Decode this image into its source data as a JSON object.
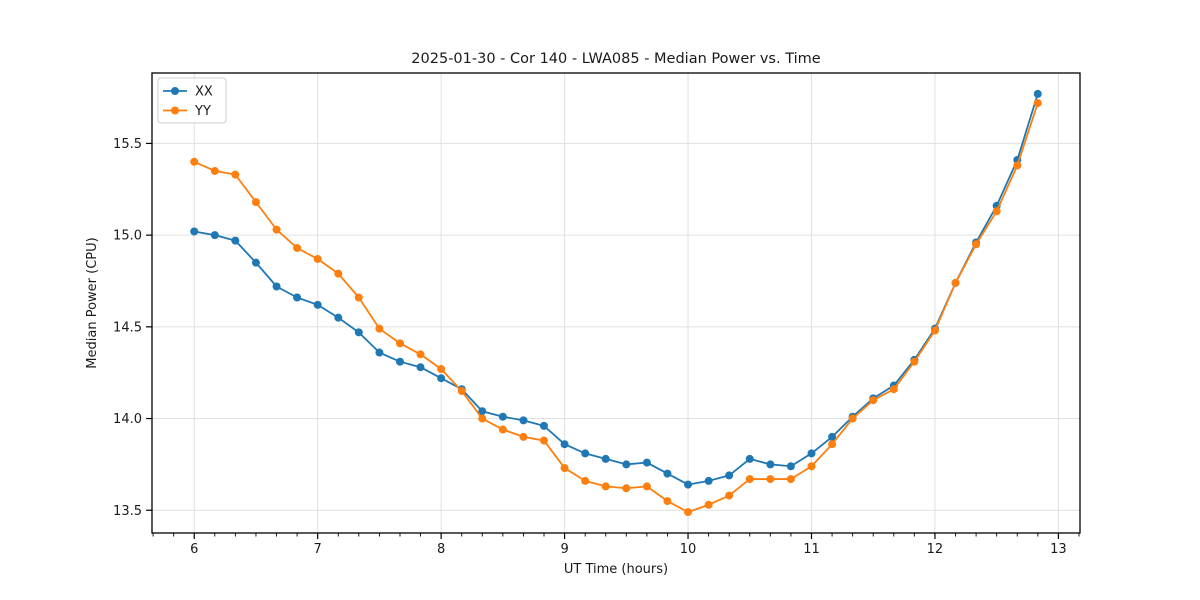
{
  "chart_data": {
    "type": "line",
    "title": "2025-01-30 - Cor 140 - LWA085 - Median Power vs. Time",
    "xlabel": "UT Time (hours)",
    "ylabel": "Median Power (CPU)",
    "x": [
      6.0,
      6.167,
      6.333,
      6.5,
      6.667,
      6.833,
      7.0,
      7.167,
      7.333,
      7.5,
      7.667,
      7.833,
      8.0,
      8.167,
      8.333,
      8.5,
      8.667,
      8.833,
      9.0,
      9.167,
      9.333,
      9.5,
      9.667,
      9.833,
      10.0,
      10.167,
      10.333,
      10.5,
      10.667,
      10.833,
      11.0,
      11.167,
      11.333,
      11.5,
      11.667,
      11.833,
      12.0,
      12.167,
      12.333,
      12.5,
      12.667,
      12.833
    ],
    "series": [
      {
        "name": "XX",
        "color": "#1f77b4",
        "values": [
          15.02,
          15.0,
          14.97,
          14.85,
          14.72,
          14.66,
          14.62,
          14.55,
          14.47,
          14.36,
          14.31,
          14.28,
          14.22,
          14.16,
          14.04,
          14.01,
          13.99,
          13.96,
          13.86,
          13.81,
          13.78,
          13.75,
          13.76,
          13.7,
          13.64,
          13.66,
          13.69,
          13.78,
          13.75,
          13.74,
          13.81,
          13.9,
          14.01,
          14.11,
          14.18,
          14.32,
          14.49,
          14.74,
          14.96,
          15.16,
          15.41,
          15.77
        ]
      },
      {
        "name": "YY",
        "color": "#ff7f0e",
        "values": [
          15.4,
          15.35,
          15.33,
          15.18,
          15.03,
          14.93,
          14.87,
          14.79,
          14.66,
          14.49,
          14.41,
          14.35,
          14.27,
          14.15,
          14.0,
          13.94,
          13.9,
          13.88,
          13.73,
          13.66,
          13.63,
          13.62,
          13.63,
          13.55,
          13.49,
          13.53,
          13.58,
          13.67,
          13.67,
          13.67,
          13.74,
          13.86,
          14.0,
          14.1,
          14.16,
          14.31,
          14.48,
          14.74,
          14.95,
          15.13,
          15.38,
          15.72
        ]
      }
    ],
    "xticks": {
      "values": [
        6,
        7,
        8,
        9,
        10,
        11,
        12,
        13
      ],
      "labels": [
        "6",
        "7",
        "8",
        "9",
        "10",
        "11",
        "12",
        "13"
      ]
    },
    "yticks": {
      "values": [
        13.5,
        14.0,
        14.5,
        15.0,
        15.5
      ],
      "labels": [
        "13.5",
        "14.0",
        "14.5",
        "15.0",
        "15.5"
      ]
    },
    "xlim": [
      5.658,
      13.175
    ],
    "ylim": [
      13.376,
      15.884
    ],
    "minor_x_step": 0.166667,
    "grid": true,
    "legend": {
      "position": "upper-left",
      "entries": [
        "XX",
        "YY"
      ]
    },
    "colors": {
      "grid": "#e0e0e0",
      "spine": "#000000",
      "tick": "#000000",
      "legend_border": "#cccccc",
      "background": "#ffffff"
    }
  }
}
